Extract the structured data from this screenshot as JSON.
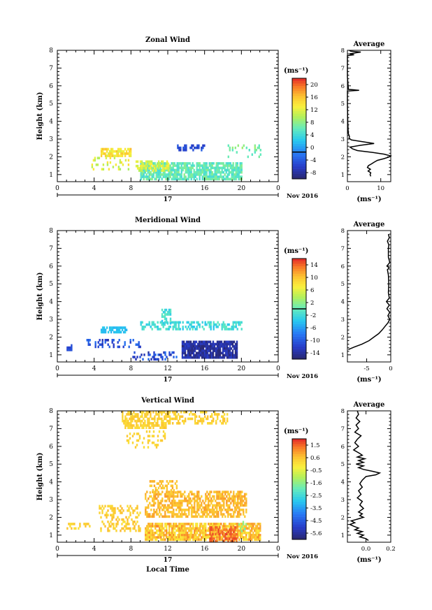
{
  "chart_data": [
    {
      "type": "heatmap",
      "title": "Zonal Wind",
      "ylabel": "Height (km)",
      "xlim": [
        0,
        24
      ],
      "ylim": [
        0.6,
        8
      ],
      "x_ticks": [
        "0",
        "4",
        "8",
        "12",
        "16",
        "20",
        "0"
      ],
      "y_ticks": [
        "1",
        "2",
        "3",
        "4",
        "5",
        "6",
        "7",
        "8"
      ],
      "date_label": "17",
      "month_label": "Nov 2016",
      "colorbar": {
        "unit": "(ms⁻¹)",
        "min": -8,
        "max": 22,
        "ticks": [
          "20",
          "16",
          "12",
          "8",
          "4",
          "0",
          "-4",
          "-8"
        ],
        "zero_line": 0
      },
      "blobs": [
        {
          "x": [
            4.7,
            8.0
          ],
          "y": [
            2.1,
            2.5
          ],
          "density": 0.75,
          "values": [
            12,
            17
          ]
        },
        {
          "x": [
            3.7,
            8.0
          ],
          "y": [
            1.3,
            2.0
          ],
          "density": 0.25,
          "values": [
            10,
            15
          ]
        },
        {
          "x": [
            9.0,
            20.0
          ],
          "y": [
            0.8,
            1.7
          ],
          "density": 0.8,
          "values": [
            5,
            9
          ]
        },
        {
          "x": [
            8.5,
            12.0
          ],
          "y": [
            1.2,
            1.8
          ],
          "density": 0.6,
          "values": [
            10,
            14
          ]
        },
        {
          "x": [
            13.0,
            16.0
          ],
          "y": [
            2.4,
            2.7
          ],
          "density": 0.5,
          "values": [
            -5,
            -2
          ]
        },
        {
          "x": [
            18.5,
            22.0
          ],
          "y": [
            2.0,
            2.7
          ],
          "density": 0.2,
          "values": [
            6,
            10
          ]
        }
      ],
      "average": {
        "title": "Average",
        "xlabel": "(ms⁻¹)",
        "xlim": [
          0,
          13
        ],
        "x_ticks": [
          "0",
          "10"
        ],
        "profile": [
          [
            0.9,
            7.0
          ],
          [
            1.0,
            6.8
          ],
          [
            1.1,
            7.0
          ],
          [
            1.2,
            6.2
          ],
          [
            1.3,
            6.9
          ],
          [
            1.4,
            6.0
          ],
          [
            1.5,
            6.3
          ],
          [
            1.6,
            7.2
          ],
          [
            1.7,
            8.0
          ],
          [
            1.8,
            9.0
          ],
          [
            1.9,
            11.0
          ],
          [
            2.0,
            12.6
          ],
          [
            2.05,
            13.0
          ],
          [
            2.15,
            11.0
          ],
          [
            2.25,
            7.5
          ],
          [
            2.35,
            3.0
          ],
          [
            2.45,
            1.5
          ],
          [
            2.55,
            0.8
          ],
          [
            2.65,
            4.0
          ],
          [
            2.75,
            8.0
          ],
          [
            2.85,
            4.5
          ],
          [
            2.95,
            1.2
          ],
          [
            3.05,
            0.5
          ],
          [
            3.15,
            0.6
          ],
          [
            3.3,
            0.3
          ],
          [
            3.5,
            0.2
          ],
          [
            4.0,
            0.1
          ],
          [
            5.0,
            0.0
          ],
          [
            5.7,
            0.0
          ],
          [
            5.75,
            3.5
          ],
          [
            5.8,
            0.3
          ],
          [
            6.5,
            0.0
          ],
          [
            7.5,
            0.0
          ],
          [
            7.7,
            0.0
          ],
          [
            7.75,
            2.0
          ],
          [
            7.8,
            0.6
          ],
          [
            7.9,
            4.0
          ],
          [
            7.95,
            1.0
          ],
          [
            8.0,
            0.5
          ]
        ]
      }
    },
    {
      "type": "heatmap",
      "title": "Meridional Wind",
      "ylabel": "Height (km)",
      "xlim": [
        0,
        24
      ],
      "ylim": [
        0.6,
        8
      ],
      "x_ticks": [
        "0",
        "4",
        "8",
        "12",
        "16",
        "20",
        "0"
      ],
      "y_ticks": [
        "1",
        "2",
        "3",
        "4",
        "5",
        "6",
        "7",
        "8"
      ],
      "date_label": "17",
      "month_label": "Nov 2016",
      "colorbar": {
        "unit": "(ms⁻¹)",
        "min": -16,
        "max": 16,
        "ticks": [
          "14",
          "10",
          "6",
          "2",
          "-2",
          "-6",
          "-10",
          "-14"
        ],
        "zero_line": 0
      },
      "blobs": [
        {
          "x": [
            4.7,
            7.5
          ],
          "y": [
            2.3,
            2.6
          ],
          "density": 0.8,
          "values": [
            -5,
            -3
          ]
        },
        {
          "x": [
            9.0,
            20.0
          ],
          "y": [
            2.5,
            2.9
          ],
          "density": 0.5,
          "values": [
            -4,
            0
          ]
        },
        {
          "x": [
            11.3,
            12.3
          ],
          "y": [
            2.8,
            3.6
          ],
          "density": 0.6,
          "values": [
            -4,
            0
          ]
        },
        {
          "x": [
            3.0,
            9.0
          ],
          "y": [
            1.4,
            1.9
          ],
          "density": 0.3,
          "values": [
            -14,
            -8
          ]
        },
        {
          "x": [
            13.5,
            19.5
          ],
          "y": [
            0.8,
            1.8
          ],
          "density": 0.9,
          "values": [
            -16,
            -12
          ]
        },
        {
          "x": [
            8.0,
            13.0
          ],
          "y": [
            0.8,
            1.2
          ],
          "density": 0.3,
          "values": [
            -14,
            -8
          ]
        },
        {
          "x": [
            1.0,
            1.5
          ],
          "y": [
            1.3,
            1.6
          ],
          "density": 0.8,
          "values": [
            -12,
            -10
          ]
        }
      ],
      "average": {
        "title": "Average",
        "xlabel": "(ms⁻¹)",
        "xlim": [
          -9,
          0
        ],
        "x_ticks": [
          "-5",
          "0"
        ],
        "profile": [
          [
            1.3,
            -8.8
          ],
          [
            1.45,
            -7.5
          ],
          [
            1.6,
            -6.0
          ],
          [
            1.8,
            -4.5
          ],
          [
            2.0,
            -3.5
          ],
          [
            2.2,
            -2.5
          ],
          [
            2.4,
            -1.8
          ],
          [
            2.6,
            -1.2
          ],
          [
            2.8,
            -0.6
          ],
          [
            3.0,
            -0.2
          ],
          [
            3.2,
            -0.6
          ],
          [
            3.4,
            -0.2
          ],
          [
            3.6,
            -0.8
          ],
          [
            3.8,
            -0.3
          ],
          [
            4.0,
            -0.9
          ],
          [
            4.2,
            -0.3
          ],
          [
            4.5,
            -0.5
          ],
          [
            5.0,
            -0.4
          ],
          [
            5.5,
            -0.5
          ],
          [
            5.8,
            -0.7
          ],
          [
            5.9,
            -0.3
          ],
          [
            6.0,
            -0.8
          ],
          [
            6.2,
            -0.2
          ],
          [
            6.5,
            -0.5
          ],
          [
            7.0,
            -0.5
          ],
          [
            7.2,
            -0.4
          ],
          [
            7.4,
            -0.7
          ],
          [
            7.6,
            -0.3
          ],
          [
            7.8,
            -0.5
          ]
        ]
      }
    },
    {
      "type": "heatmap",
      "title": "Vertical Wind",
      "ylabel": "Height (km)",
      "xlabel": "Local Time",
      "xlim": [
        0,
        24
      ],
      "ylim": [
        0.6,
        8
      ],
      "x_ticks": [
        "0",
        "4",
        "8",
        "12",
        "16",
        "20",
        "0"
      ],
      "y_ticks": [
        "1",
        "2",
        "3",
        "4",
        "5",
        "6",
        "7",
        "8"
      ],
      "date_label": "17",
      "month_label": "Nov 2016",
      "colorbar": {
        "unit": "(ms⁻¹)",
        "min": -6.0,
        "max": 2.0,
        "ticks": [
          "1.5",
          "0.6",
          "-0.5",
          "-1.6",
          "-2.5",
          "-3.5",
          "-4.5",
          "-5.6"
        ]
      },
      "blobs": [
        {
          "x": [
            7.0,
            12.0
          ],
          "y": [
            7.0,
            8.0
          ],
          "density": 0.6,
          "values": [
            0.0,
            0.6
          ]
        },
        {
          "x": [
            12.0,
            18.5
          ],
          "y": [
            7.3,
            8.0
          ],
          "density": 0.4,
          "values": [
            0.0,
            0.6
          ]
        },
        {
          "x": [
            7.5,
            12.0
          ],
          "y": [
            6.0,
            6.9
          ],
          "density": 0.2,
          "values": [
            0.0,
            0.5
          ]
        },
        {
          "x": [
            9.5,
            22.0
          ],
          "y": [
            0.7,
            1.7
          ],
          "density": 0.85,
          "values": [
            -0.2,
            1.2
          ]
        },
        {
          "x": [
            9.5,
            20.5
          ],
          "y": [
            2.0,
            3.5
          ],
          "density": 0.6,
          "values": [
            0.3,
            1.0
          ]
        },
        {
          "x": [
            4.5,
            9.0
          ],
          "y": [
            1.3,
            2.7
          ],
          "density": 0.4,
          "values": [
            0.0,
            0.7
          ]
        },
        {
          "x": [
            1.0,
            3.5
          ],
          "y": [
            1.4,
            1.7
          ],
          "density": 0.4,
          "values": [
            0.0,
            0.6
          ]
        },
        {
          "x": [
            10.0,
            13.0
          ],
          "y": [
            3.4,
            4.1
          ],
          "density": 0.4,
          "values": [
            0.3,
            0.9
          ]
        },
        {
          "x": [
            16.5,
            19.5
          ],
          "y": [
            0.7,
            1.5
          ],
          "density": 0.5,
          "values": [
            1.2,
            1.8
          ]
        },
        {
          "x": [
            19.5,
            20.5
          ],
          "y": [
            1.2,
            1.8
          ],
          "density": 0.3,
          "values": [
            -1.8,
            -1.2
          ]
        }
      ],
      "average": {
        "title": "Average",
        "xlabel": "(ms⁻¹)",
        "xlim": [
          -0.15,
          0.2
        ],
        "x_ticks": [
          "0.0",
          "0.2"
        ],
        "profile": [
          [
            0.7,
            0.02
          ],
          [
            0.8,
            0.0
          ],
          [
            0.9,
            -0.05
          ],
          [
            1.0,
            -0.02
          ],
          [
            1.1,
            -0.07
          ],
          [
            1.2,
            -0.03
          ],
          [
            1.3,
            -0.09
          ],
          [
            1.4,
            -0.06
          ],
          [
            1.5,
            -0.1
          ],
          [
            1.6,
            -0.13
          ],
          [
            1.7,
            -0.09
          ],
          [
            1.8,
            -0.12
          ],
          [
            1.9,
            -0.07
          ],
          [
            2.0,
            -0.02
          ],
          [
            2.1,
            -0.05
          ],
          [
            2.2,
            -0.03
          ],
          [
            2.3,
            -0.06
          ],
          [
            2.5,
            -0.02
          ],
          [
            2.7,
            -0.05
          ],
          [
            2.9,
            -0.03
          ],
          [
            3.1,
            -0.07
          ],
          [
            3.3,
            -0.04
          ],
          [
            3.5,
            -0.06
          ],
          [
            3.7,
            -0.03
          ],
          [
            3.9,
            -0.05
          ],
          [
            4.1,
            -0.03
          ],
          [
            4.3,
            0.0
          ],
          [
            4.4,
            0.08
          ],
          [
            4.5,
            0.11
          ],
          [
            4.6,
            0.05
          ],
          [
            4.7,
            -0.02
          ],
          [
            4.8,
            -0.06
          ],
          [
            4.9,
            -0.02
          ],
          [
            5.0,
            -0.08
          ],
          [
            5.1,
            -0.02
          ],
          [
            5.2,
            -0.06
          ],
          [
            5.3,
            -0.01
          ],
          [
            5.4,
            -0.07
          ],
          [
            5.5,
            -0.03
          ],
          [
            5.6,
            -0.05
          ],
          [
            5.8,
            -0.1
          ],
          [
            6.0,
            -0.06
          ],
          [
            6.2,
            -0.09
          ],
          [
            6.4,
            -0.07
          ],
          [
            6.6,
            -0.04
          ],
          [
            6.8,
            -0.09
          ],
          [
            7.0,
            -0.06
          ],
          [
            7.2,
            -0.08
          ],
          [
            7.4,
            -0.05
          ],
          [
            7.6,
            -0.08
          ],
          [
            7.8,
            -0.06
          ],
          [
            8.0,
            -0.07
          ]
        ]
      }
    }
  ]
}
